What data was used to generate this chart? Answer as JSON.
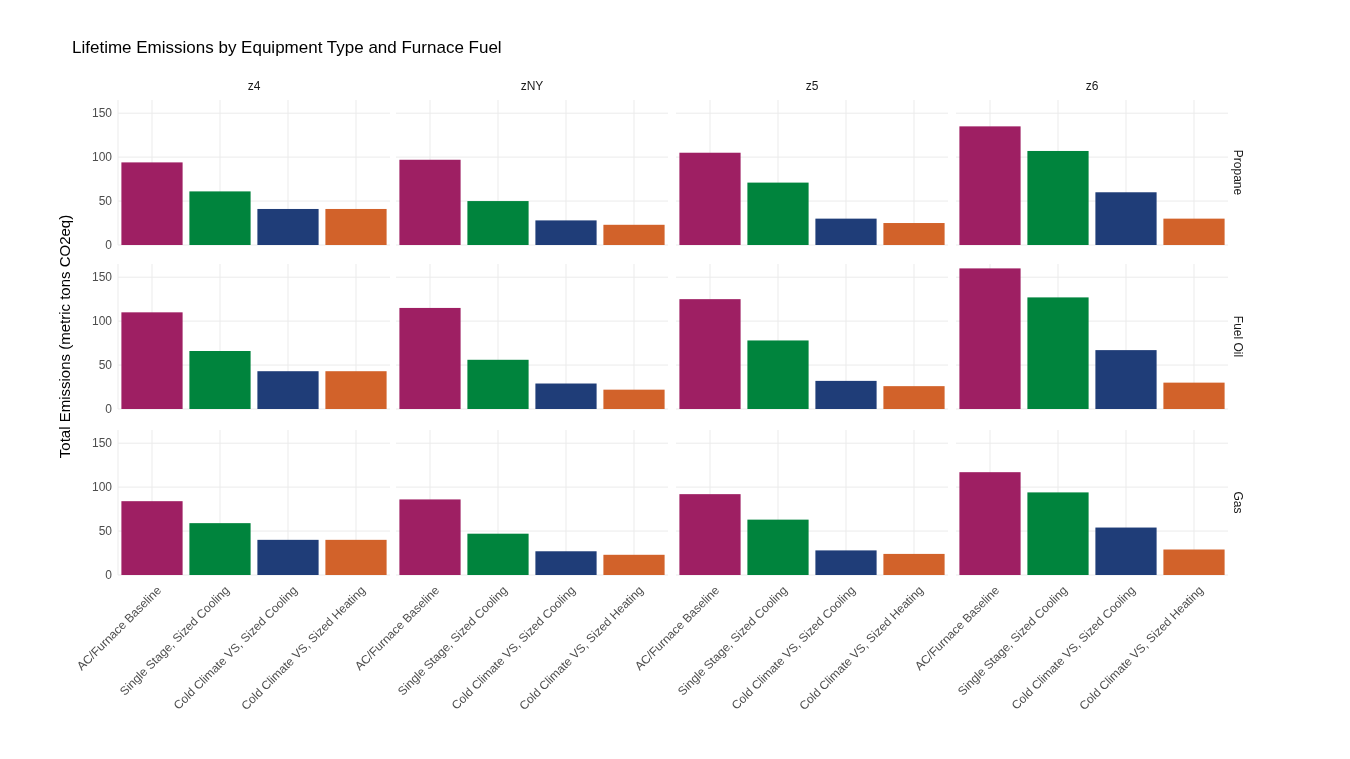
{
  "chart_data": [
    {
      "type": "bar",
      "title": "Lifetime Emissions by Equipment Type and Furnace Fuel",
      "annotations": [
        "z4",
        "zNY",
        "z5",
        "z6"
      ],
      "y2label": "Propane",
      "categories": [
        null,
        null,
        null,
        null,
        null,
        null,
        null,
        null,
        null,
        null,
        null,
        null,
        null,
        null,
        null,
        null
      ],
      "values": [
        94,
        61,
        41,
        41,
        97,
        50,
        28,
        23,
        105,
        71,
        30,
        25,
        135,
        107,
        60,
        30
      ],
      "colors": [
        "#9e1f63",
        "#00843d",
        "#1f3d78",
        "#d2622a",
        "#9e1f63",
        "#00843d",
        "#1f3d78",
        "#d2622a",
        "#9e1f63",
        "#00843d",
        "#1f3d78",
        "#d2622a",
        "#9e1f63",
        "#00843d",
        "#1f3d78",
        "#d2622a"
      ],
      "ylim": [
        0,
        165
      ],
      "yticks": [
        0,
        50,
        100,
        150
      ],
      "grid": true,
      "tick_labels": "y"
    },
    {
      "type": "bar",
      "ylabel": "Total Emissions (metric tons CO2eq)",
      "y2label": "Fuel Oil",
      "categories": [
        null,
        null,
        null,
        null,
        null,
        null,
        null,
        null,
        null,
        null,
        null,
        null,
        null,
        null,
        null,
        null
      ],
      "values": [
        110,
        66,
        43,
        43,
        115,
        56,
        29,
        22,
        125,
        78,
        32,
        26,
        160,
        127,
        67,
        30
      ],
      "colors": [
        "#9e1f63",
        "#00843d",
        "#1f3d78",
        "#d2622a",
        "#9e1f63",
        "#00843d",
        "#1f3d78",
        "#d2622a",
        "#9e1f63",
        "#00843d",
        "#1f3d78",
        "#d2622a",
        "#9e1f63",
        "#00843d",
        "#1f3d78",
        "#d2622a"
      ],
      "ylim": [
        0,
        165
      ],
      "yticks": [
        0,
        50,
        100,
        150
      ],
      "grid": true,
      "tick_labels": "y"
    },
    {
      "type": "bar",
      "y2label": "Gas",
      "categories": [
        "AC/Furnace Baseline",
        "Single Stage, Sized Cooling",
        "Cold Climate VS, Sized Cooling",
        "Cold Climate VS, Sized Heating",
        "AC/Furnace Baseline",
        "Single Stage, Sized Cooling",
        "Cold Climate VS, Sized Cooling",
        "Cold Climate VS, Sized Heating",
        "AC/Furnace Baseline",
        "Single Stage, Sized Cooling",
        "Cold Climate VS, Sized Cooling",
        "Cold Climate VS, Sized Heating",
        "AC/Furnace Baseline",
        "Single Stage, Sized Cooling",
        "Cold Climate VS, Sized Cooling",
        "Cold Climate VS, Sized Heating"
      ],
      "values": [
        84,
        59,
        40,
        40,
        86,
        47,
        27,
        23,
        92,
        63,
        28,
        24,
        117,
        94,
        54,
        29
      ],
      "colors": [
        "#9e1f63",
        "#00843d",
        "#1f3d78",
        "#d2622a",
        "#9e1f63",
        "#00843d",
        "#1f3d78",
        "#d2622a",
        "#9e1f63",
        "#00843d",
        "#1f3d78",
        "#d2622a",
        "#9e1f63",
        "#00843d",
        "#1f3d78",
        "#d2622a"
      ],
      "ylim": [
        0,
        165
      ],
      "yticks": [
        0,
        50,
        100,
        150
      ],
      "grid": true
    }
  ]
}
